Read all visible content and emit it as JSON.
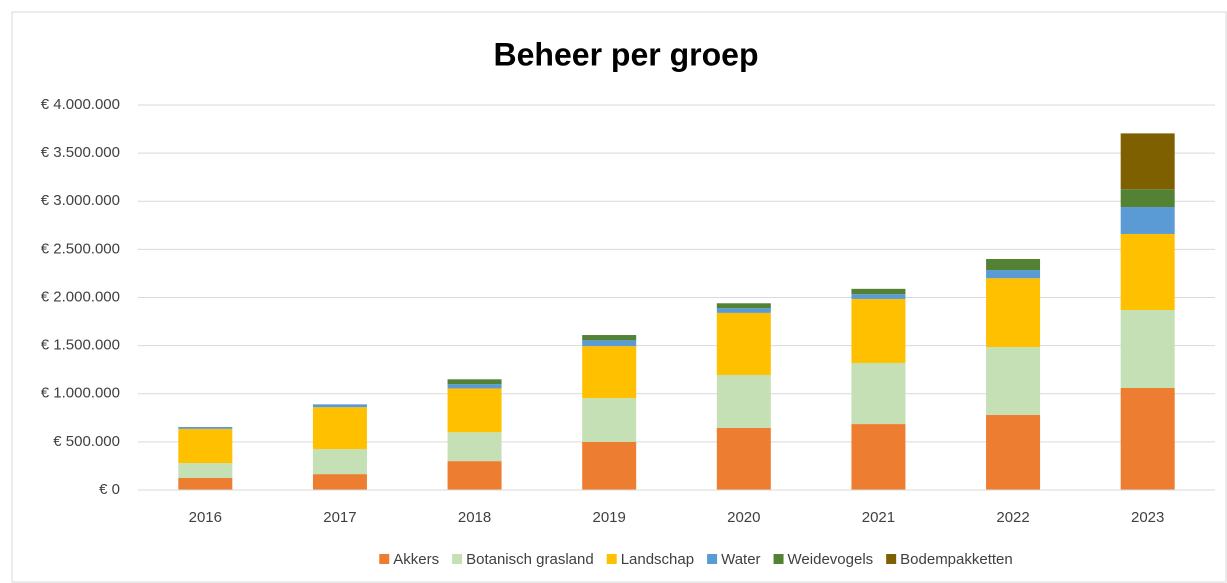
{
  "chart_data": {
    "type": "stacked_bar",
    "title": "Beheer per groep",
    "categories": [
      "2016",
      "2017",
      "2018",
      "2019",
      "2020",
      "2021",
      "2022",
      "2023"
    ],
    "series": [
      {
        "name": "Akkers",
        "color": "#ed7d31",
        "values": [
          125000,
          165000,
          300000,
          500000,
          645000,
          685000,
          780000,
          1060000
        ]
      },
      {
        "name": "Botanisch grasland",
        "color": "#c5e0b4",
        "values": [
          155000,
          260000,
          300000,
          455000,
          550000,
          635000,
          705000,
          810000
        ]
      },
      {
        "name": "Landschap",
        "color": "#ffc000",
        "values": [
          355000,
          435000,
          455000,
          540000,
          645000,
          665000,
          715000,
          790000
        ]
      },
      {
        "name": "Water",
        "color": "#5b9bd5",
        "values": [
          20000,
          30000,
          45000,
          60000,
          50000,
          50000,
          85000,
          280000
        ]
      },
      {
        "name": "Weidevogels",
        "color": "#548235",
        "values": [
          0,
          0,
          50000,
          55000,
          50000,
          55000,
          115000,
          185000
        ]
      },
      {
        "name": "Bodempakketten",
        "color": "#7f6000",
        "values": [
          0,
          0,
          0,
          0,
          0,
          0,
          0,
          580000
        ]
      }
    ],
    "ylim": [
      0,
      4000000
    ],
    "yticks": [
      {
        "value": 0,
        "label": "€ 0"
      },
      {
        "value": 500000,
        "label": "€ 500.000"
      },
      {
        "value": 1000000,
        "label": "€ 1.000.000"
      },
      {
        "value": 1500000,
        "label": "€ 1.500.000"
      },
      {
        "value": 2000000,
        "label": "€ 2.000.000"
      },
      {
        "value": 2500000,
        "label": "€ 2.500.000"
      },
      {
        "value": 3000000,
        "label": "€ 3.000.000"
      },
      {
        "value": 3500000,
        "label": "€ 3.500.000"
      },
      {
        "value": 4000000,
        "label": "€ 4.000.000"
      }
    ],
    "grid": true,
    "legend": "bottom"
  }
}
